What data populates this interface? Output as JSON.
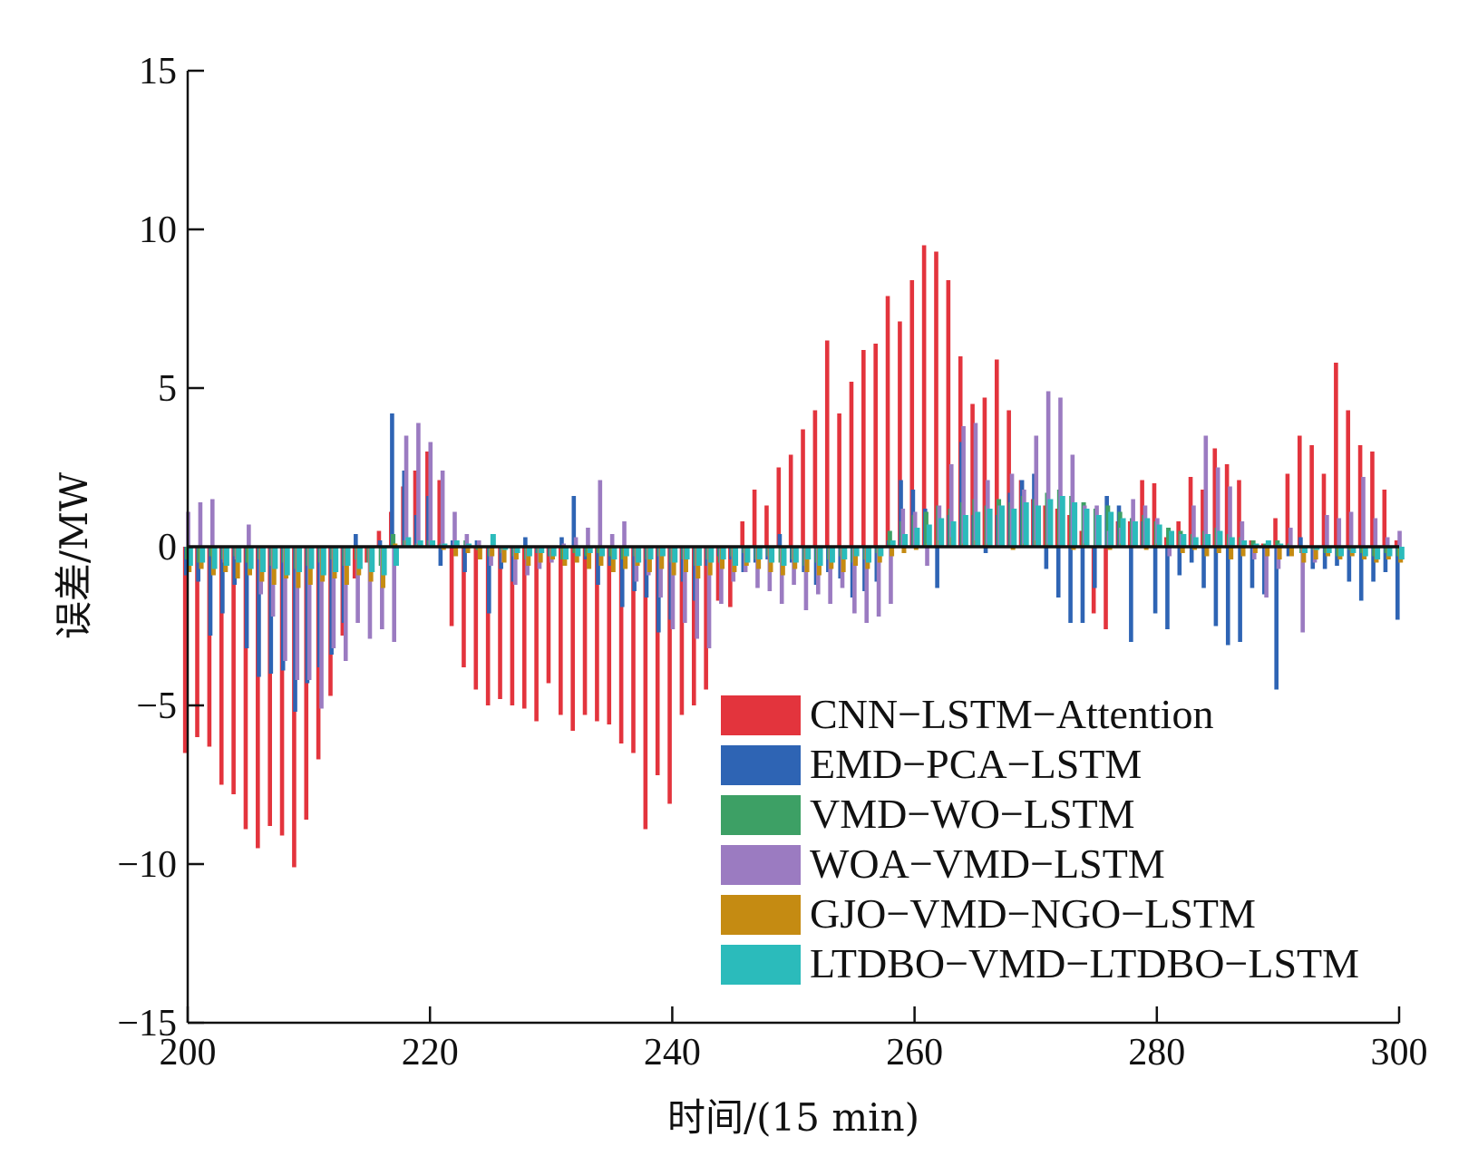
{
  "chart_data": {
    "type": "bar",
    "xlabel": "时间/(15 min)",
    "ylabel": "误差/MW",
    "xlim": [
      200,
      300
    ],
    "ylim": [
      -15,
      15
    ],
    "x_ticks": [
      "200",
      "220",
      "240",
      "260",
      "280",
      "300"
    ],
    "y_ticks": [
      "15",
      "10",
      "5",
      "0",
      "−5",
      "−10",
      "−15"
    ],
    "grid": false,
    "legend_position": "bottom-right",
    "x": [
      200,
      201,
      202,
      203,
      204,
      205,
      206,
      207,
      208,
      209,
      210,
      211,
      212,
      213,
      214,
      215,
      216,
      217,
      218,
      219,
      220,
      221,
      222,
      223,
      224,
      225,
      226,
      227,
      228,
      229,
      230,
      231,
      232,
      233,
      234,
      235,
      236,
      237,
      238,
      239,
      240,
      241,
      242,
      243,
      244,
      245,
      246,
      247,
      248,
      249,
      250,
      251,
      252,
      253,
      254,
      255,
      256,
      257,
      258,
      259,
      260,
      261,
      262,
      263,
      264,
      265,
      266,
      267,
      268,
      269,
      270,
      271,
      272,
      273,
      274,
      275,
      276,
      277,
      278,
      279,
      280,
      281,
      282,
      283,
      284,
      285,
      286,
      287,
      288,
      289,
      290,
      291,
      292,
      293,
      294,
      295,
      296,
      297,
      298,
      299,
      300
    ],
    "series": [
      {
        "name": "CNN−LSTM−Attention",
        "color": "#e3343d",
        "values": [
          -6.5,
          -6.0,
          -6.3,
          -7.5,
          -7.8,
          -8.9,
          -9.5,
          -8.8,
          -9.1,
          -10.1,
          -8.6,
          -6.7,
          -4.7,
          -2.8,
          -1.0,
          -0.5,
          0.5,
          1.1,
          1.9,
          2.4,
          3.0,
          2.1,
          -2.5,
          -3.8,
          -4.5,
          -5.0,
          -4.8,
          -5.0,
          -5.1,
          -5.5,
          -4.3,
          -5.3,
          -5.8,
          -5.3,
          -5.5,
          -5.6,
          -6.2,
          -6.5,
          -8.9,
          -7.2,
          -8.1,
          -5.3,
          -5.0,
          -4.5,
          -1.7,
          -1.9,
          0.8,
          1.8,
          1.3,
          2.5,
          2.9,
          3.7,
          4.3,
          6.5,
          4.2,
          5.2,
          6.2,
          6.4,
          7.9,
          7.1,
          8.4,
          9.5,
          9.3,
          8.4,
          6.0,
          4.5,
          4.7,
          5.9,
          4.3,
          2.1,
          1.5,
          1.3,
          1.2,
          1.0,
          0.5,
          -2.1,
          -2.6,
          0.8,
          0.8,
          2.1,
          2.0,
          0.3,
          0.8,
          2.2,
          1.8,
          3.1,
          2.6,
          2.1,
          0.2,
          0.1,
          0.9,
          2.3,
          3.5,
          3.2,
          2.3,
          5.8,
          4.3,
          3.2,
          3.0,
          1.8,
          0.2
        ]
      },
      {
        "name": "EMD−PCA−LSTM",
        "color": "#2e64b4",
        "values": [
          -0.9,
          -1.1,
          -2.8,
          -2.1,
          -1.2,
          -3.2,
          -4.1,
          -4.0,
          -3.9,
          -5.2,
          -4.3,
          -3.8,
          -3.4,
          -2.4,
          0.4,
          0.0,
          0.2,
          4.2,
          2.4,
          1.0,
          1.6,
          -0.6,
          0.2,
          -0.8,
          0.2,
          -2.1,
          -0.7,
          -1.1,
          0.3,
          -0.2,
          -0.3,
          0.3,
          1.6,
          -0.4,
          -1.2,
          -0.6,
          -1.9,
          -1.4,
          -1.6,
          -2.7,
          -2.3,
          -1.1,
          -1.7,
          -0.6,
          -0.3,
          -0.4,
          -0.8,
          -0.5,
          -0.4,
          0.4,
          -0.5,
          -0.8,
          -1.2,
          -0.8,
          -1.0,
          -1.6,
          -1.4,
          -1.1,
          0.2,
          2.1,
          1.8,
          1.2,
          -1.3,
          1.0,
          3.3,
          1.0,
          -0.2,
          1.0,
          1.7,
          2.1,
          2.3,
          -0.7,
          -1.6,
          -2.4,
          -2.4,
          -1.3,
          1.6,
          1.3,
          -3.0,
          0.8,
          -2.1,
          -2.6,
          -0.9,
          -0.5,
          -1.3,
          -2.5,
          -3.1,
          -3.0,
          -1.3,
          -1.5,
          -4.5,
          -0.3,
          0.3,
          -0.7,
          -0.7,
          -0.6,
          -1.1,
          -1.7,
          -1.1,
          -0.8,
          -2.3
        ]
      },
      {
        "name": "VMD−WO−LSTM",
        "color": "#3da065",
        "values": [
          -0.4,
          -0.5,
          -0.3,
          -0.4,
          -0.3,
          -0.5,
          -0.4,
          -0.6,
          -0.5,
          -0.7,
          -0.6,
          -0.5,
          -0.4,
          -0.6,
          -0.4,
          -0.5,
          -0.6,
          0.4,
          0.2,
          0.1,
          0.2,
          0.1,
          0.0,
          0.2,
          -0.1,
          -0.3,
          -0.2,
          -0.3,
          -0.4,
          -0.2,
          -0.3,
          -0.4,
          -0.2,
          -0.3,
          -0.2,
          -0.3,
          -0.4,
          -0.3,
          -0.4,
          -0.3,
          -0.5,
          -0.4,
          -0.6,
          -0.4,
          -0.5,
          -0.3,
          -0.2,
          -0.4,
          -0.3,
          -0.5,
          -0.4,
          -0.6,
          -0.5,
          -0.4,
          -0.3,
          -0.5,
          -0.4,
          -0.2,
          0.5,
          0.8,
          1.0,
          1.1,
          1.3,
          1.2,
          1.4,
          1.5,
          1.3,
          1.5,
          1.4,
          1.6,
          1.5,
          1.7,
          1.8,
          1.6,
          1.4,
          1.2,
          1.3,
          1.1,
          0.9,
          1.0,
          0.8,
          0.6,
          0.5,
          0.4,
          0.5,
          0.6,
          0.4,
          0.3,
          0.2,
          0.1,
          0.2,
          0.1,
          -0.2,
          -0.1,
          -0.2,
          -0.3,
          -0.1,
          -0.2,
          -0.3,
          -0.2,
          -0.3
        ]
      },
      {
        "name": "WOA−VMD−LSTM",
        "color": "#9b7bc1",
        "values": [
          1.1,
          1.4,
          1.5,
          -0.5,
          -0.4,
          0.7,
          -1.5,
          -2.2,
          -3.6,
          -4.2,
          -4.2,
          -5.1,
          -3.2,
          -3.6,
          -2.4,
          -2.9,
          -2.6,
          -3.0,
          3.5,
          3.9,
          3.3,
          2.4,
          1.1,
          0.4,
          0.2,
          -0.6,
          -0.5,
          -1.2,
          -0.9,
          -0.7,
          -0.5,
          0.1,
          0.3,
          0.6,
          2.1,
          0.4,
          0.8,
          -1.1,
          -0.9,
          -1.6,
          -2.6,
          -2.4,
          -2.9,
          -3.2,
          -1.8,
          -1.1,
          -0.8,
          -1.3,
          -1.4,
          -1.8,
          -1.2,
          -2.0,
          -1.5,
          -1.8,
          -1.3,
          -2.1,
          -2.4,
          -2.2,
          -1.8,
          1.2,
          1.1,
          -0.6,
          1.3,
          2.6,
          3.8,
          3.9,
          2.1,
          1.3,
          2.3,
          1.8,
          3.5,
          4.9,
          4.7,
          2.9,
          1.3,
          1.3,
          0.5,
          0.6,
          1.5,
          1.3,
          0.9,
          -0.3,
          0.4,
          1.3,
          3.5,
          2.5,
          1.9,
          0.8,
          -0.4,
          -1.6,
          -0.7,
          0.6,
          -2.7,
          -0.5,
          1.0,
          0.9,
          1.1,
          2.2,
          0.9,
          0.3,
          0.5
        ]
      },
      {
        "name": "GJO−VMD−NGO−LSTM",
        "color": "#c58b12",
        "values": [
          -0.8,
          -0.7,
          -0.9,
          -0.8,
          -1.0,
          -0.9,
          -1.1,
          -1.2,
          -1.0,
          -1.3,
          -1.2,
          -1.1,
          -1.0,
          -1.2,
          -0.9,
          -1.1,
          -1.3,
          0.1,
          0.2,
          0.1,
          0.0,
          -0.1,
          -0.3,
          -0.2,
          -0.4,
          -0.3,
          -0.5,
          -0.4,
          -0.6,
          -0.5,
          -0.4,
          -0.6,
          -0.5,
          -0.7,
          -0.6,
          -0.8,
          -0.7,
          -0.6,
          -0.8,
          -0.7,
          -0.9,
          -0.8,
          -1.0,
          -0.9,
          -0.7,
          -0.8,
          -0.6,
          -0.7,
          -0.8,
          -0.9,
          -0.7,
          -0.8,
          -0.9,
          -0.7,
          -0.8,
          -0.6,
          -0.7,
          -0.5,
          -0.3,
          -0.2,
          -0.1,
          0.1,
          0.2,
          0.3,
          0.1,
          0.2,
          0.1,
          0.0,
          -0.1,
          0.1,
          0.2,
          0.1,
          0.0,
          -0.1,
          0.1,
          0.0,
          -0.1,
          0.1,
          0.0,
          -0.1,
          0.1,
          0.0,
          -0.2,
          -0.1,
          -0.3,
          -0.2,
          -0.4,
          -0.3,
          -0.2,
          -0.3,
          -0.4,
          -0.3,
          -0.5,
          -0.4,
          -0.3,
          -0.4,
          -0.3,
          -0.4,
          -0.5,
          -0.4,
          -0.5
        ]
      },
      {
        "name": "LTDBO−VMD−LTDBO−LSTM",
        "color": "#2bbbbb",
        "values": [
          -0.6,
          -0.5,
          -0.7,
          -0.6,
          -0.5,
          -0.7,
          -0.8,
          -0.7,
          -0.9,
          -0.8,
          -0.7,
          -0.9,
          -0.8,
          -0.6,
          -0.7,
          -0.8,
          -0.9,
          -0.6,
          0.3,
          0.2,
          0.2,
          0.1,
          0.2,
          0.1,
          0.0,
          0.4,
          -0.1,
          -0.2,
          -0.3,
          -0.2,
          -0.3,
          -0.4,
          -0.3,
          -0.2,
          -0.3,
          -0.4,
          -0.3,
          -0.5,
          -0.4,
          -0.3,
          -0.5,
          -0.4,
          -0.6,
          -0.5,
          -0.4,
          -0.6,
          -0.5,
          -0.4,
          -0.5,
          -0.6,
          -0.5,
          -0.4,
          -0.6,
          -0.5,
          -0.4,
          -0.3,
          -0.5,
          -0.3,
          0.2,
          0.4,
          0.6,
          0.7,
          0.9,
          0.8,
          1.0,
          1.1,
          1.2,
          1.3,
          1.2,
          1.4,
          1.3,
          1.5,
          1.6,
          1.4,
          1.2,
          1.0,
          1.1,
          0.9,
          0.8,
          0.9,
          0.7,
          0.5,
          0.4,
          0.3,
          0.4,
          0.5,
          0.3,
          0.2,
          0.1,
          0.2,
          0.1,
          0.0,
          -0.2,
          -0.1,
          -0.2,
          -0.3,
          -0.2,
          -0.3,
          -0.4,
          -0.3,
          -0.4
        ]
      }
    ]
  }
}
